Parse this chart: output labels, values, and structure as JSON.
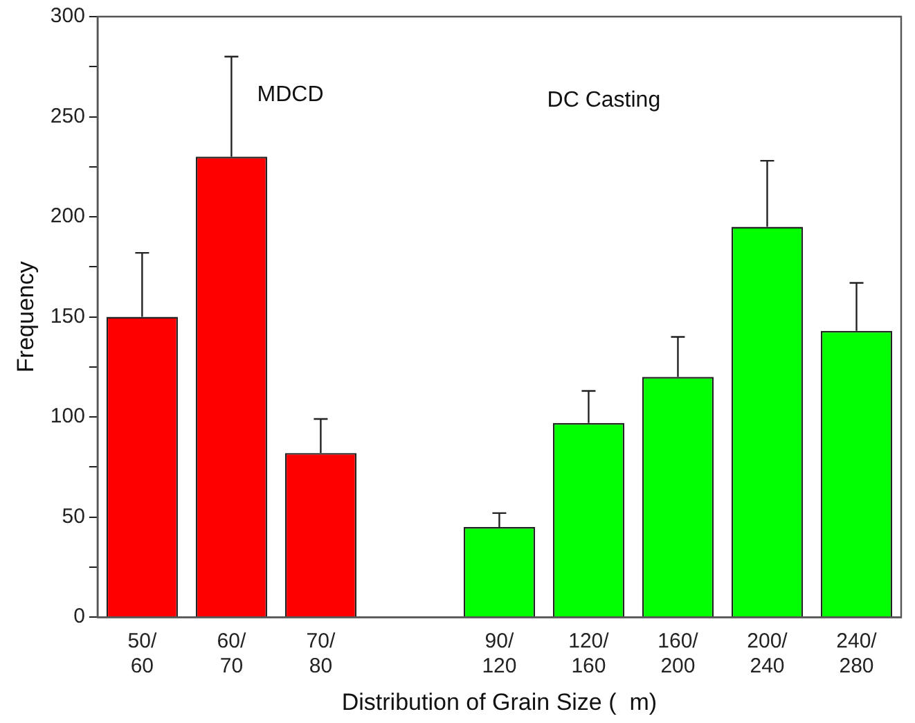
{
  "chart_data": {
    "type": "bar",
    "xlabel": "Distribution of Grain Size (  m)",
    "ylabel": "Frequency",
    "categories": [
      "50/\n60",
      "60/\n70",
      "70/\n80",
      null,
      "90/\n120",
      "120/\n160",
      "160/\n200",
      "200/\n240",
      "240/\n280"
    ],
    "values": [
      150,
      230,
      82,
      null,
      45,
      97,
      120,
      195,
      143
    ],
    "colors": [
      "#ff0000",
      "#ff0000",
      "#ff0000",
      "#ff0000",
      "#00ff00",
      "#00ff00",
      "#00ff00",
      "#00ff00",
      "#00ff00"
    ],
    "errors": [
      [
        150,
        182
      ],
      [
        230,
        280
      ],
      [
        82,
        99
      ],
      null,
      [
        45,
        52
      ],
      [
        97,
        113
      ],
      [
        120,
        140
      ],
      [
        195,
        228
      ],
      [
        143,
        167
      ]
    ],
    "ylim": [
      0,
      300
    ],
    "yticks": [
      0,
      {
        "value": 25,
        "label": null
      },
      50,
      {
        "value": 75,
        "label": null
      },
      100,
      {
        "value": 125,
        "label": null
      },
      150,
      {
        "value": 175,
        "label": null
      },
      200,
      {
        "value": 225,
        "label": null
      },
      250,
      {
        "value": 275,
        "label": null
      },
      300
    ],
    "annotations": [
      "MDCD",
      "DC Casting"
    ],
    "grid": false,
    "legend": false
  }
}
